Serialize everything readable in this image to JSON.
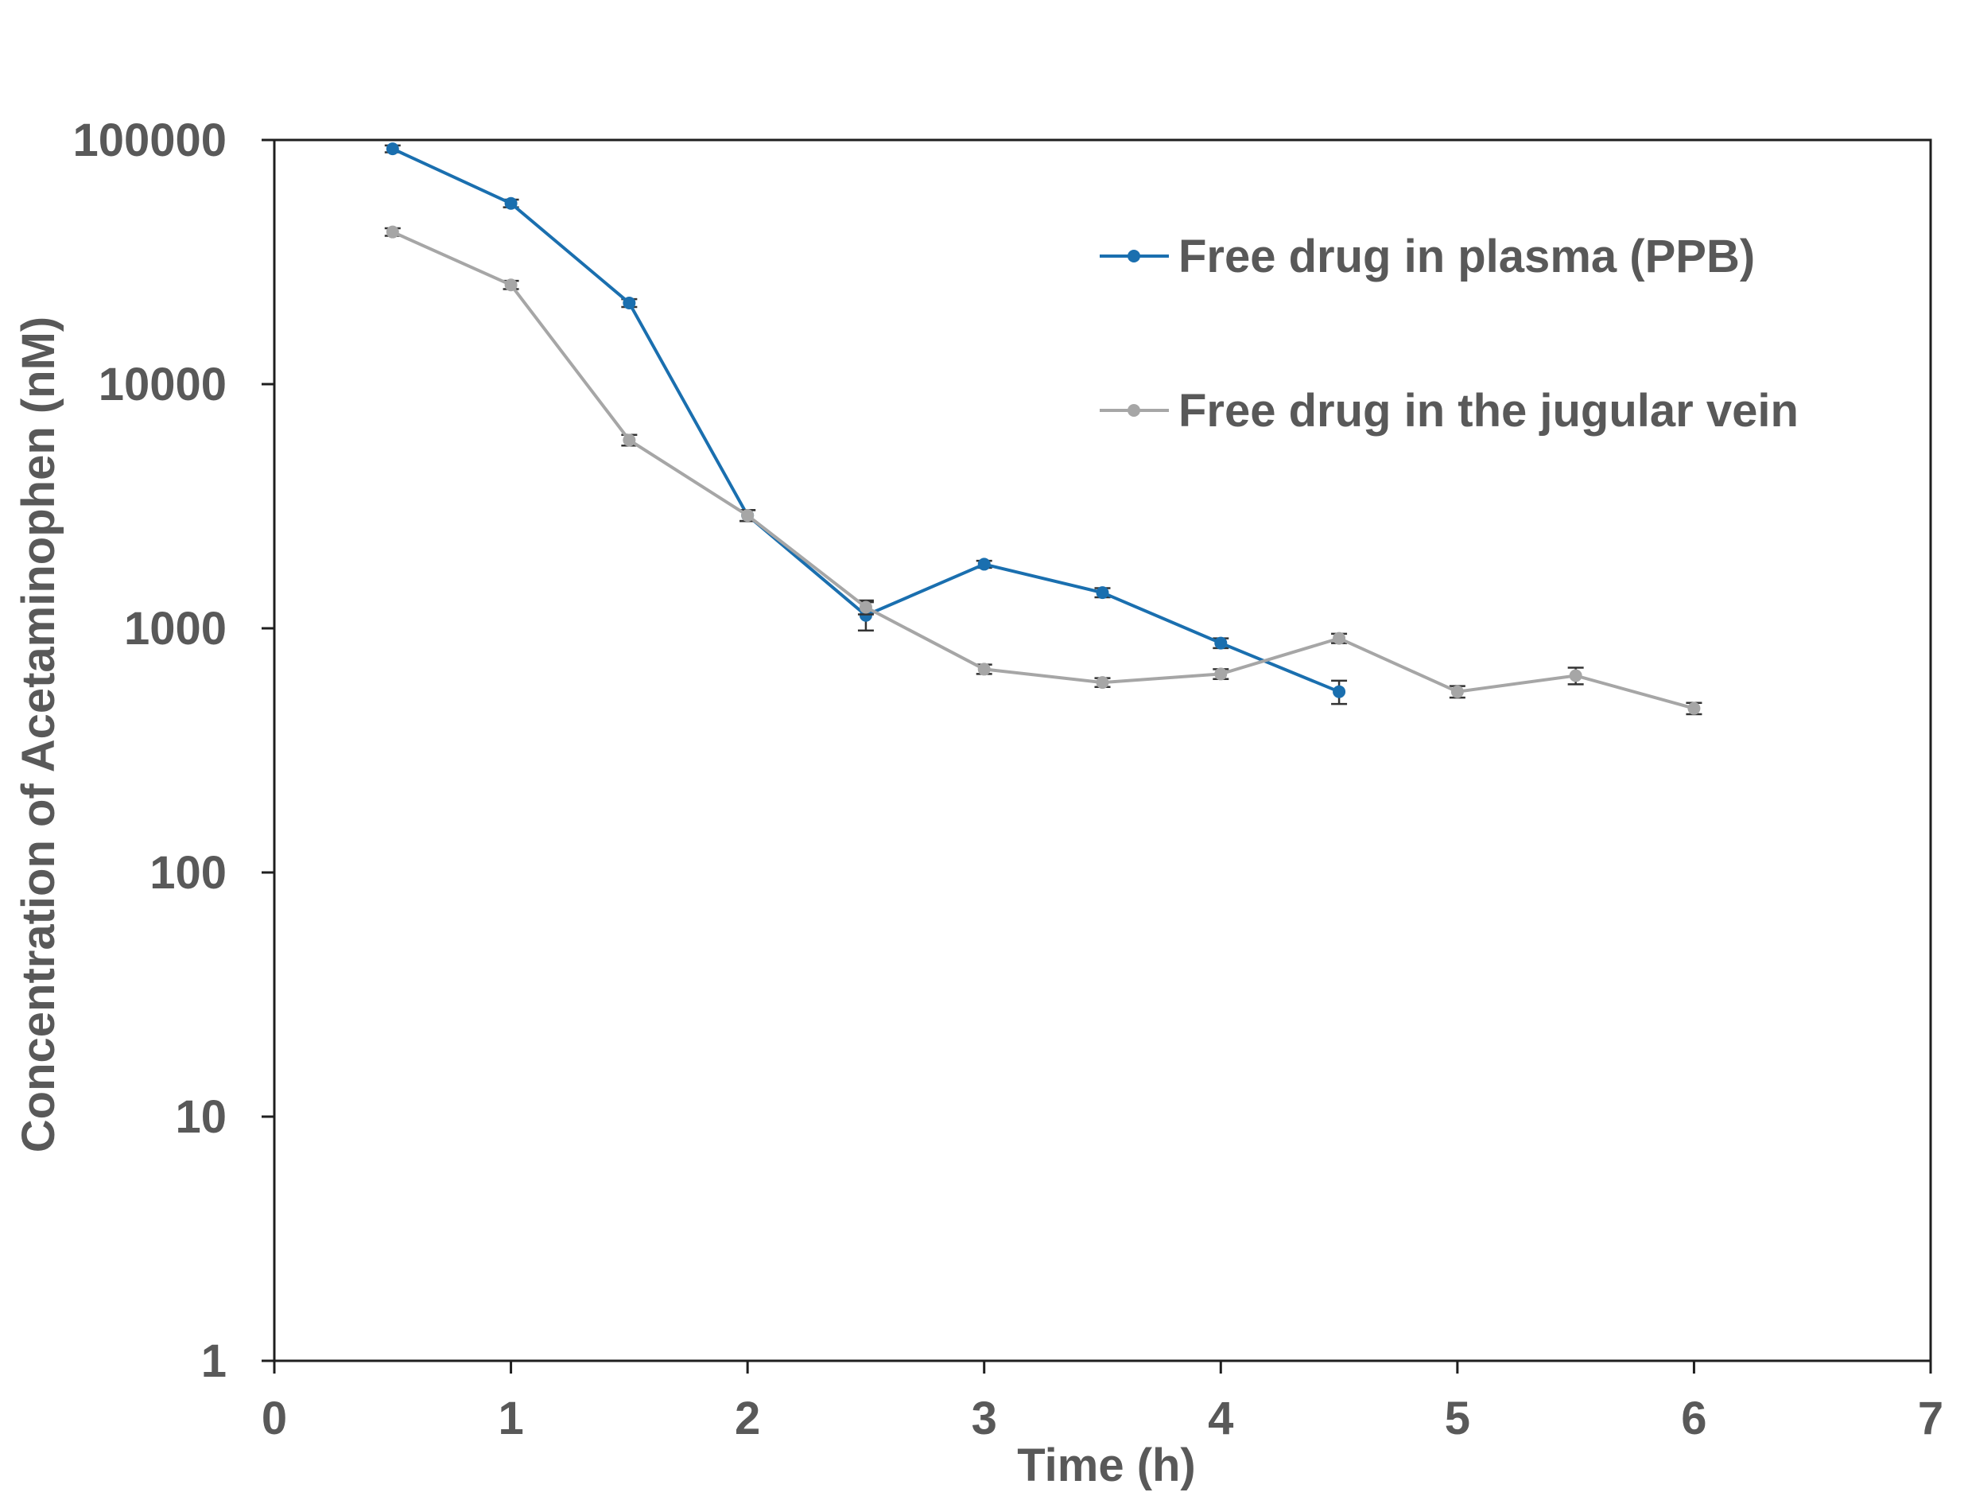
{
  "chart_data": {
    "type": "line",
    "title": "",
    "xlabel": "Time (h)",
    "ylabel": "Concentration of Acetaminophen (nM)",
    "xlim": [
      0,
      7
    ],
    "ylim": [
      1,
      100000
    ],
    "yscale": "log",
    "grid": false,
    "legend_position": "top-right",
    "x_ticks": [
      "0",
      "1",
      "2",
      "3",
      "4",
      "5",
      "6",
      "7"
    ],
    "y_ticks": [
      "1",
      "10",
      "100",
      "1000",
      "10000",
      "100000"
    ],
    "series": [
      {
        "name": "Free drug in plasma (PPB)",
        "color": "#1a6faf",
        "x": [
          0.5,
          1,
          1.5,
          2,
          2.5,
          3,
          3.5,
          4,
          4.5
        ],
        "y": [
          92000,
          55000,
          21500,
          2900,
          1130,
          1830,
          1400,
          870,
          550
        ],
        "err": [
          3000,
          2000,
          800,
          150,
          150,
          60,
          60,
          40,
          60
        ]
      },
      {
        "name": "Free drug in the jugular vein",
        "color": "#a6a6a6",
        "x": [
          0.5,
          1,
          1.5,
          2,
          2.5,
          3,
          3.5,
          4,
          4.5,
          5,
          5.5,
          6
        ],
        "y": [
          42000,
          25500,
          5900,
          2900,
          1220,
          680,
          600,
          650,
          910,
          550,
          640,
          470
        ],
        "err": [
          1500,
          1000,
          300,
          150,
          80,
          30,
          25,
          30,
          40,
          30,
          50,
          25
        ]
      }
    ]
  }
}
